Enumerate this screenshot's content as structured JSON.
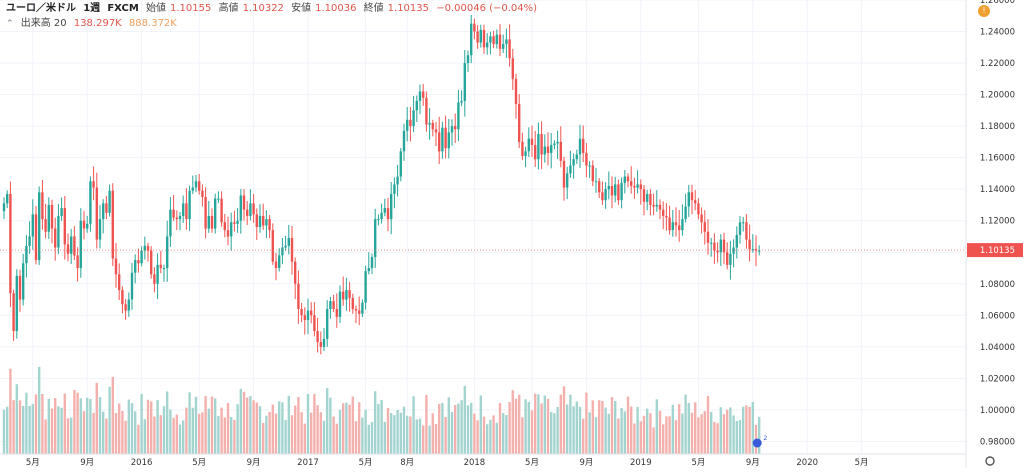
{
  "legend": {
    "symbol": "ユーロ／米ドル",
    "interval": "1週",
    "source": "FXCM",
    "open_label": "始値",
    "open_value": "1.10155",
    "high_label": "高値",
    "high_value": "1.10322",
    "low_label": "安値",
    "low_value": "1.10036",
    "close_label": "終値",
    "close_value": "1.10135",
    "change": "−0.00046 (−0.04%)",
    "volume_label": "出来高 20",
    "volume_value": "138.297K",
    "volume_ma": "888.372K"
  },
  "alert_badge": "!",
  "marker_badge": "2",
  "colors": {
    "up": "#26a69a",
    "down": "#ef5350",
    "up_volume": "#a3d4cf",
    "down_volume": "#f4b0ad",
    "grid": "#f0f3fa",
    "price_label_bg": "#ef5350"
  },
  "chart_data": {
    "type": "candlestick",
    "price_axis": {
      "ticks": [
        "1.26000",
        "1.24000",
        "1.22000",
        "1.20000",
        "1.18000",
        "1.16000",
        "1.14000",
        "1.12000",
        "1.10000",
        "1.08000",
        "1.06000",
        "1.04000",
        "1.02000",
        "1.00000",
        "0.98000"
      ],
      "range": [
        0.972,
        1.26
      ],
      "last_price": "1.10135"
    },
    "time_axis": {
      "ticks": [
        "5月",
        "9月",
        "2016",
        "5月",
        "9月",
        "2017",
        "5月",
        "8月",
        "2018",
        "5月",
        "9月",
        "2019",
        "5月",
        "9月",
        "2020",
        "5月"
      ],
      "tick_weeks": [
        9,
        26,
        43,
        61,
        78,
        95,
        113,
        126,
        147,
        165,
        182,
        199,
        217,
        234,
        251,
        268
      ]
    },
    "grid": true,
    "closes": [
      1.131,
      1.137,
      1.074,
      1.05,
      1.085,
      1.07,
      1.093,
      1.104,
      1.11,
      1.124,
      1.095,
      1.138,
      1.121,
      1.113,
      1.13,
      1.115,
      1.103,
      1.123,
      1.128,
      1.105,
      1.099,
      1.11,
      1.098,
      1.09,
      1.12,
      1.115,
      1.118,
      1.145,
      1.141,
      1.108,
      1.121,
      1.131,
      1.125,
      1.139,
      1.096,
      1.086,
      1.076,
      1.067,
      1.063,
      1.07,
      1.087,
      1.095,
      1.093,
      1.101,
      1.104,
      1.101,
      1.086,
      1.08,
      1.092,
      1.09,
      1.09,
      1.11,
      1.127,
      1.122,
      1.121,
      1.123,
      1.131,
      1.121,
      1.139,
      1.141,
      1.145,
      1.139,
      1.135,
      1.115,
      1.123,
      1.115,
      1.134,
      1.134,
      1.119,
      1.114,
      1.11,
      1.119,
      1.118,
      1.12,
      1.136,
      1.127,
      1.123,
      1.131,
      1.124,
      1.116,
      1.123,
      1.117,
      1.121,
      1.114,
      1.094,
      1.09,
      1.098,
      1.103,
      1.104,
      1.109,
      1.094,
      1.08,
      1.064,
      1.06,
      1.057,
      1.063,
      1.06,
      1.05,
      1.043,
      1.04,
      1.045,
      1.064,
      1.069,
      1.064,
      1.059,
      1.075,
      1.07,
      1.076,
      1.071,
      1.064,
      1.063,
      1.061,
      1.068,
      1.088,
      1.09,
      1.097,
      1.121,
      1.121,
      1.125,
      1.128,
      1.121,
      1.137,
      1.143,
      1.148,
      1.164,
      1.177,
      1.184,
      1.18,
      1.19,
      1.196,
      1.202,
      1.198,
      1.181,
      1.182,
      1.178,
      1.176,
      1.164,
      1.179,
      1.166,
      1.176,
      1.18,
      1.178,
      1.195,
      1.196,
      1.22,
      1.225,
      1.245,
      1.24,
      1.233,
      1.241,
      1.23,
      1.233,
      1.237,
      1.232,
      1.238,
      1.229,
      1.232,
      1.235,
      1.223,
      1.21,
      1.194,
      1.17,
      1.161,
      1.164,
      1.172,
      1.168,
      1.159,
      1.175,
      1.162,
      1.167,
      1.163,
      1.168,
      1.169,
      1.17,
      1.158,
      1.141,
      1.15,
      1.155,
      1.159,
      1.162,
      1.172,
      1.163,
      1.155,
      1.155,
      1.145,
      1.145,
      1.138,
      1.133,
      1.14,
      1.142,
      1.136,
      1.143,
      1.133,
      1.144,
      1.148,
      1.145,
      1.142,
      1.141,
      1.143,
      1.14,
      1.132,
      1.137,
      1.13,
      1.129,
      1.13,
      1.127,
      1.123,
      1.122,
      1.114,
      1.119,
      1.117,
      1.114,
      1.121,
      1.129,
      1.138,
      1.133,
      1.131,
      1.124,
      1.119,
      1.113,
      1.106,
      1.106,
      1.101,
      1.1,
      1.108,
      1.1,
      1.092,
      1.099,
      1.103,
      1.111,
      1.119,
      1.119,
      1.108,
      1.102,
      1.102,
      1.101,
      1.101
    ],
    "volume_note": "bars shaded by candle direction; volume values unlabeled"
  }
}
